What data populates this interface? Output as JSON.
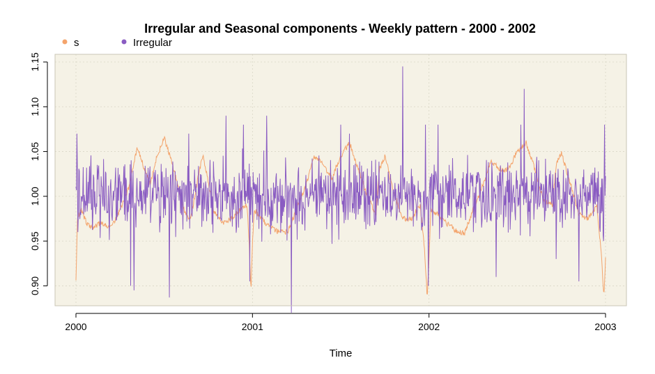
{
  "chart_data": {
    "type": "line",
    "title": "Irregular and Seasonal components - Weekly pattern - 2000 - 2002",
    "xlabel": "Time",
    "ylabel": "",
    "xlim": [
      2000,
      2003
    ],
    "ylim": [
      0.87,
      1.15
    ],
    "x_ticks": [
      2000,
      2001,
      2002,
      2003
    ],
    "x_tick_labels": [
      "2000",
      "2001",
      "2002",
      "2003"
    ],
    "y_ticks": [
      0.9,
      0.95,
      1.0,
      1.05,
      1.1,
      1.15
    ],
    "y_tick_labels": [
      "0.90",
      "0.95",
      "1.00",
      "1.05",
      "1.10",
      "1.15"
    ],
    "grid": true,
    "legend_position": "top-left",
    "background_color": "#f5f2e6",
    "series": [
      {
        "name": "s",
        "color": "#f4a46c",
        "x_start": 2000,
        "x_end": 2003,
        "keyframes": [
          [
            0.0,
            0.905
          ],
          [
            0.008,
            0.975
          ],
          [
            0.03,
            0.985
          ],
          [
            0.06,
            0.97
          ],
          [
            0.1,
            0.965
          ],
          [
            0.14,
            0.97
          ],
          [
            0.2,
            0.965
          ],
          [
            0.25,
            0.985
          ],
          [
            0.3,
            1.01
          ],
          [
            0.33,
            1.04
          ],
          [
            0.35,
            1.055
          ],
          [
            0.38,
            1.035
          ],
          [
            0.42,
            1.015
          ],
          [
            0.46,
            1.045
          ],
          [
            0.5,
            1.065
          ],
          [
            0.54,
            1.04
          ],
          [
            0.58,
            1.01
          ],
          [
            0.62,
            0.98
          ],
          [
            0.65,
            0.975
          ],
          [
            0.7,
            1.03
          ],
          [
            0.72,
            1.045
          ],
          [
            0.75,
            1.015
          ],
          [
            0.78,
            0.985
          ],
          [
            0.83,
            0.97
          ],
          [
            0.88,
            0.975
          ],
          [
            0.93,
            0.985
          ],
          [
            0.97,
            0.99
          ],
          [
            0.985,
            0.93
          ],
          [
            0.992,
            0.893
          ],
          [
            1.0,
            0.95
          ],
          [
            1.01,
            0.985
          ],
          [
            1.05,
            0.975
          ],
          [
            1.1,
            0.965
          ],
          [
            1.15,
            0.96
          ],
          [
            1.2,
            0.96
          ],
          [
            1.25,
            0.985
          ],
          [
            1.3,
            1.01
          ],
          [
            1.35,
            1.045
          ],
          [
            1.4,
            1.035
          ],
          [
            1.45,
            1.02
          ],
          [
            1.5,
            1.045
          ],
          [
            1.55,
            1.06
          ],
          [
            1.6,
            1.03
          ],
          [
            1.65,
            1.0
          ],
          [
            1.7,
            0.98
          ],
          [
            1.72,
            1.03
          ],
          [
            1.75,
            1.045
          ],
          [
            1.8,
            1.005
          ],
          [
            1.85,
            0.975
          ],
          [
            1.9,
            0.975
          ],
          [
            1.95,
            0.99
          ],
          [
            1.975,
            0.94
          ],
          [
            1.99,
            0.887
          ],
          [
            2.0,
            0.93
          ],
          [
            2.01,
            0.985
          ],
          [
            2.05,
            0.98
          ],
          [
            2.1,
            0.97
          ],
          [
            2.15,
            0.962
          ],
          [
            2.2,
            0.958
          ],
          [
            2.25,
            0.985
          ],
          [
            2.3,
            1.01
          ],
          [
            2.35,
            1.04
          ],
          [
            2.4,
            1.03
          ],
          [
            2.45,
            1.03
          ],
          [
            2.5,
            1.05
          ],
          [
            2.55,
            1.06
          ],
          [
            2.6,
            1.03
          ],
          [
            2.65,
            0.995
          ],
          [
            2.7,
            0.99
          ],
          [
            2.72,
            1.035
          ],
          [
            2.75,
            1.048
          ],
          [
            2.8,
            1.015
          ],
          [
            2.85,
            0.98
          ],
          [
            2.9,
            0.975
          ],
          [
            2.95,
            0.99
          ],
          [
            2.975,
            0.94
          ],
          [
            2.99,
            0.888
          ],
          [
            3.0,
            0.93
          ]
        ]
      },
      {
        "name": "Irregular",
        "color": "#8a5cc2",
        "x_start": 2000,
        "x_end": 2003,
        "baseline": 1.0,
        "noise_amplitude": 0.028,
        "spikes": [
          [
            0.005,
            1.07
          ],
          [
            0.01,
            0.96
          ],
          [
            0.31,
            0.9
          ],
          [
            0.33,
            0.895
          ],
          [
            0.53,
            0.887
          ],
          [
            0.64,
            1.07
          ],
          [
            0.85,
            1.09
          ],
          [
            0.95,
            1.08
          ],
          [
            0.985,
            0.905
          ],
          [
            1.08,
            1.09
          ],
          [
            1.22,
            0.87
          ],
          [
            1.5,
            1.08
          ],
          [
            1.55,
            1.07
          ],
          [
            1.85,
            1.145
          ],
          [
            1.98,
            1.08
          ],
          [
            1.995,
            0.9
          ],
          [
            2.05,
            1.08
          ],
          [
            2.25,
            0.96
          ],
          [
            2.38,
            0.91
          ],
          [
            2.52,
            1.08
          ],
          [
            2.54,
            1.12
          ],
          [
            2.72,
            0.93
          ],
          [
            2.85,
            0.905
          ],
          [
            2.99,
            0.95
          ],
          [
            2.995,
            1.08
          ]
        ]
      }
    ]
  }
}
